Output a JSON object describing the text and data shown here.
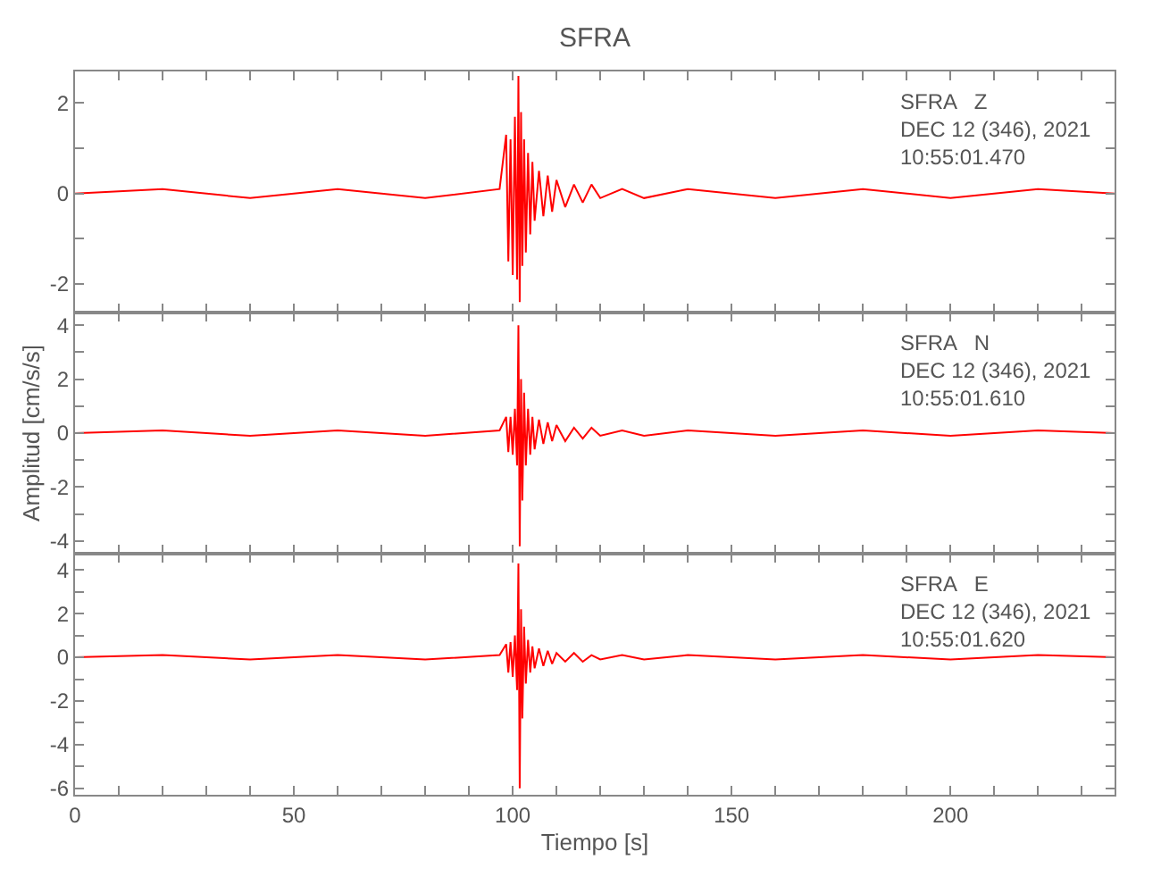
{
  "chart_data": [
    {
      "type": "line",
      "title": "SFRA",
      "annotations": [
        "SFRA   Z\nDEC 12 (346), 2021\n10:55:01.470"
      ],
      "tick_labels": "y",
      "marker": "none",
      "line_style": "solid",
      "x": [
        0,
        20,
        40,
        60,
        80,
        97,
        98.5,
        99,
        99.5,
        100,
        100.5,
        101,
        101.3,
        101.6,
        101.9,
        102.2,
        102.6,
        103,
        103.5,
        104,
        104.5,
        105,
        106,
        107,
        108,
        109,
        110,
        112,
        114,
        116,
        118,
        120,
        125,
        130,
        140,
        160,
        180,
        200,
        220,
        237.5
      ],
      "series": [
        {
          "color": "#ff0000",
          "values": [
            0,
            0.1,
            -0.1,
            0.1,
            -0.1,
            0.1,
            1.3,
            -1.5,
            1.2,
            -1.8,
            1.7,
            -1.9,
            2.6,
            -2.4,
            1.8,
            -1.6,
            1.2,
            -1.3,
            0.9,
            -0.9,
            0.7,
            -0.6,
            0.5,
            -0.5,
            0.4,
            -0.4,
            0.3,
            -0.3,
            0.2,
            -0.2,
            0.2,
            -0.1,
            0.1,
            -0.1,
            0.1,
            -0.1,
            0.1,
            -0.1,
            0.1,
            0
          ]
        }
      ],
      "xlim": [
        0,
        237.5
      ],
      "xticks": [
        0,
        {
          "value": 10,
          "label": null
        },
        {
          "value": 20,
          "label": null
        },
        {
          "value": 30,
          "label": null
        },
        {
          "value": 40,
          "label": null
        },
        50,
        {
          "value": 60,
          "label": null
        },
        {
          "value": 70,
          "label": null
        },
        {
          "value": 80,
          "label": null
        },
        {
          "value": 90,
          "label": null
        },
        100,
        {
          "value": 110,
          "label": null
        },
        {
          "value": 120,
          "label": null
        },
        {
          "value": 130,
          "label": null
        },
        {
          "value": 140,
          "label": null
        },
        150,
        {
          "value": 160,
          "label": null
        },
        {
          "value": 170,
          "label": null
        },
        {
          "value": 180,
          "label": null
        },
        {
          "value": 190,
          "label": null
        },
        200,
        {
          "value": 210,
          "label": null
        },
        {
          "value": 220,
          "label": null
        },
        {
          "value": 230,
          "label": null
        }
      ],
      "ylim": [
        -2.63,
        2.7
      ],
      "yticks": [
        -2,
        {
          "value": -1,
          "label": null
        },
        0,
        {
          "value": 1,
          "label": null
        },
        2
      ]
    },
    {
      "type": "line",
      "ylabel": "Amplitud [cm/s/s]",
      "annotations": [
        "SFRA   N\nDEC 12 (346), 2021\n10:55:01.610"
      ],
      "tick_labels": "y",
      "marker": "none",
      "line_style": "solid",
      "x": [
        0,
        20,
        40,
        60,
        80,
        97,
        98.5,
        99,
        99.5,
        100,
        100.5,
        101,
        101.3,
        101.6,
        101.9,
        102.2,
        102.6,
        103,
        103.5,
        104,
        104.5,
        105,
        106,
        107,
        108,
        109,
        110,
        112,
        114,
        116,
        118,
        120,
        125,
        130,
        140,
        160,
        180,
        200,
        220,
        237.5
      ],
      "series": [
        {
          "color": "#ff0000",
          "values": [
            0,
            0.1,
            -0.1,
            0.1,
            -0.1,
            0.1,
            0.6,
            -0.7,
            0.6,
            -0.8,
            0.9,
            -1.2,
            4.0,
            -4.2,
            2.0,
            -2.5,
            1.5,
            -1.2,
            0.9,
            -0.8,
            0.6,
            -0.6,
            0.5,
            -0.4,
            0.4,
            -0.3,
            0.3,
            -0.3,
            0.2,
            -0.2,
            0.2,
            -0.1,
            0.1,
            -0.1,
            0.1,
            -0.1,
            0.1,
            -0.1,
            0.1,
            0
          ]
        }
      ],
      "xlim": [
        0,
        237.5
      ],
      "xticks": [
        0,
        {
          "value": 10,
          "label": null
        },
        {
          "value": 20,
          "label": null
        },
        {
          "value": 30,
          "label": null
        },
        {
          "value": 40,
          "label": null
        },
        50,
        {
          "value": 60,
          "label": null
        },
        {
          "value": 70,
          "label": null
        },
        {
          "value": 80,
          "label": null
        },
        {
          "value": 90,
          "label": null
        },
        100,
        {
          "value": 110,
          "label": null
        },
        {
          "value": 120,
          "label": null
        },
        {
          "value": 130,
          "label": null
        },
        {
          "value": 140,
          "label": null
        },
        150,
        {
          "value": 160,
          "label": null
        },
        {
          "value": 170,
          "label": null
        },
        {
          "value": 180,
          "label": null
        },
        {
          "value": 190,
          "label": null
        },
        200,
        {
          "value": 210,
          "label": null
        },
        {
          "value": 220,
          "label": null
        },
        {
          "value": 230,
          "label": null
        }
      ],
      "ylim": [
        -4.47,
        4.47
      ],
      "yticks": [
        -4,
        {
          "value": -3,
          "label": null
        },
        -2,
        {
          "value": -1,
          "label": null
        },
        0,
        {
          "value": 1,
          "label": null
        },
        2,
        {
          "value": 3,
          "label": null
        },
        4
      ]
    },
    {
      "type": "line",
      "xlabel": "Tiempo [s]",
      "annotations": [
        "SFRA   E\nDEC 12 (346), 2021\n10:55:01.620"
      ],
      "marker": "none",
      "line_style": "solid",
      "x": [
        0,
        20,
        40,
        60,
        80,
        97,
        98.5,
        99,
        99.5,
        100,
        100.5,
        101,
        101.3,
        101.6,
        101.9,
        102.2,
        102.6,
        103,
        103.5,
        104,
        104.5,
        105,
        106,
        107,
        108,
        109,
        110,
        112,
        114,
        116,
        118,
        120,
        125,
        130,
        140,
        160,
        180,
        200,
        220,
        237.5
      ],
      "series": [
        {
          "color": "#ff0000",
          "values": [
            0,
            0.1,
            -0.1,
            0.1,
            -0.1,
            0.1,
            0.6,
            -0.7,
            0.7,
            -0.9,
            1.0,
            -1.5,
            4.3,
            -6.0,
            2.2,
            -2.8,
            1.4,
            -1.2,
            0.8,
            -0.7,
            0.5,
            -0.5,
            0.4,
            -0.4,
            0.3,
            -0.3,
            0.2,
            -0.2,
            0.2,
            -0.2,
            0.1,
            -0.1,
            0.1,
            -0.1,
            0.1,
            -0.1,
            0.1,
            -0.1,
            0.1,
            0
          ]
        }
      ],
      "xlim": [
        0,
        237.5
      ],
      "xticks": [
        0,
        {
          "value": 10,
          "label": null
        },
        {
          "value": 20,
          "label": null
        },
        {
          "value": 30,
          "label": null
        },
        {
          "value": 40,
          "label": null
        },
        50,
        {
          "value": 60,
          "label": null
        },
        {
          "value": 70,
          "label": null
        },
        {
          "value": 80,
          "label": null
        },
        {
          "value": 90,
          "label": null
        },
        100,
        {
          "value": 110,
          "label": null
        },
        {
          "value": 120,
          "label": null
        },
        {
          "value": 130,
          "label": null
        },
        {
          "value": 140,
          "label": null
        },
        150,
        {
          "value": 160,
          "label": null
        },
        {
          "value": 170,
          "label": null
        },
        {
          "value": 180,
          "label": null
        },
        {
          "value": 190,
          "label": null
        },
        200,
        {
          "value": 210,
          "label": null
        },
        {
          "value": 220,
          "label": null
        },
        {
          "value": 230,
          "label": null
        }
      ],
      "ylim": [
        -6.3,
        4.75
      ],
      "yticks": [
        -6,
        {
          "value": -5,
          "label": null
        },
        -4,
        {
          "value": -3,
          "label": null
        },
        -2,
        {
          "value": -1,
          "label": null
        },
        0,
        {
          "value": 1,
          "label": null
        },
        2,
        {
          "value": 3,
          "label": null
        },
        4
      ]
    }
  ]
}
